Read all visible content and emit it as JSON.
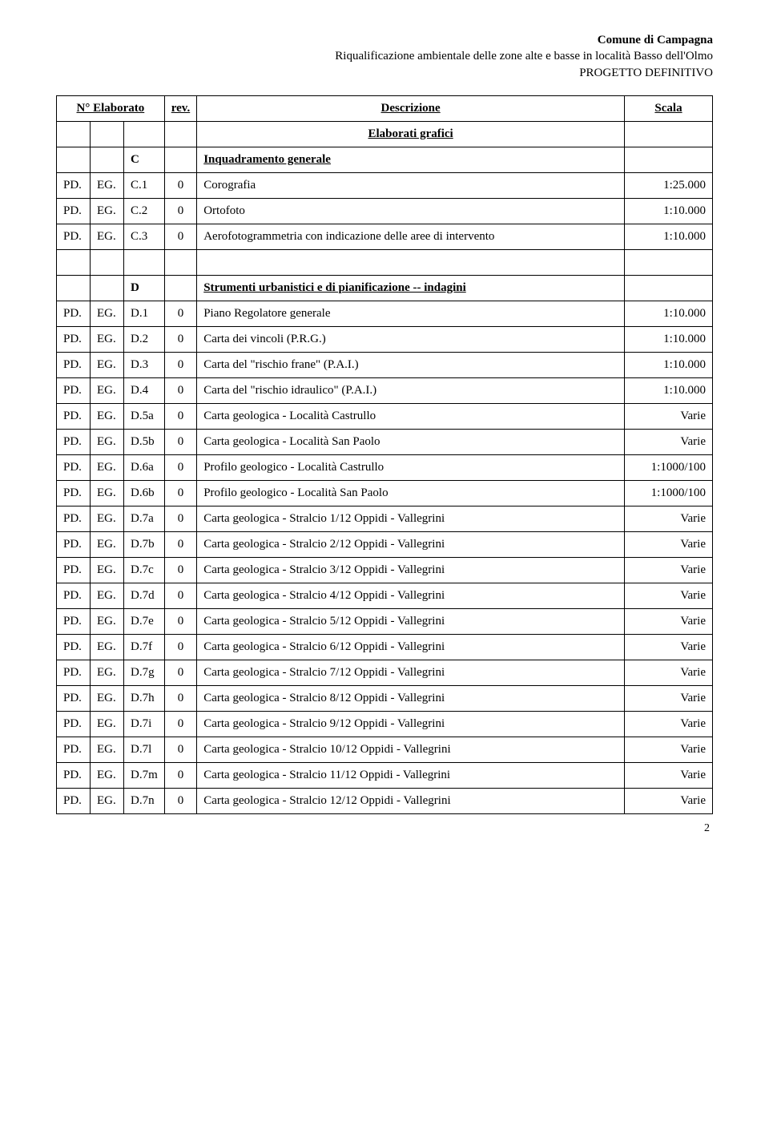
{
  "header": {
    "line1": "Comune di Campagna",
    "line2": "Riqualificazione ambientale delle zone alte e basse in località Basso dell'Olmo",
    "line3": "PROGETTO DEFINITIVO"
  },
  "thead": {
    "n_elaborato": "N° Elaborato",
    "rev": "rev.",
    "descrizione": "Descrizione",
    "scala": "Scala"
  },
  "sections": [
    {
      "title": "Elaborati grafici"
    },
    {
      "letter": "C",
      "name": "Inquadramento generale"
    }
  ],
  "rowsC": [
    {
      "a": "PD.",
      "b": "EG.",
      "c": "C.1",
      "d": "0",
      "e": "Corografia",
      "f": "1:25.000"
    },
    {
      "a": "PD.",
      "b": "EG.",
      "c": "C.2",
      "d": "0",
      "e": "Ortofoto",
      "f": "1:10.000"
    },
    {
      "a": "PD.",
      "b": "EG.",
      "c": "C.3",
      "d": "0",
      "e": "Aerofotogrammetria con indicazione delle aree di intervento",
      "f": "1:10.000"
    }
  ],
  "sectionD": {
    "letter": "D",
    "name": "Strumenti urbanistici e di pianificazione -- indagini"
  },
  "rowsD": [
    {
      "a": "PD.",
      "b": "EG.",
      "c": "D.1",
      "d": "0",
      "e": "Piano Regolatore generale",
      "f": "1:10.000"
    },
    {
      "a": "PD.",
      "b": "EG.",
      "c": "D.2",
      "d": "0",
      "e": "Carta dei vincoli (P.R.G.)",
      "f": "1:10.000"
    },
    {
      "a": "PD.",
      "b": "EG.",
      "c": "D.3",
      "d": "0",
      "e": "Carta del \"rischio frane\" (P.A.I.)",
      "f": "1:10.000"
    },
    {
      "a": "PD.",
      "b": "EG.",
      "c": "D.4",
      "d": "0",
      "e": "Carta del \"rischio idraulico\" (P.A.I.)",
      "f": "1:10.000"
    },
    {
      "a": "PD.",
      "b": "EG.",
      "c": "D.5a",
      "d": "0",
      "e": "Carta geologica - Località Castrullo",
      "f": "Varie"
    },
    {
      "a": "PD.",
      "b": "EG.",
      "c": "D.5b",
      "d": "0",
      "e": "Carta geologica - Località San Paolo",
      "f": "Varie"
    },
    {
      "a": "PD.",
      "b": "EG.",
      "c": "D.6a",
      "d": "0",
      "e": "Profilo geologico - Località Castrullo",
      "f": "1:1000/100"
    },
    {
      "a": "PD.",
      "b": "EG.",
      "c": "D.6b",
      "d": "0",
      "e": "Profilo geologico - Località San Paolo",
      "f": "1:1000/100"
    },
    {
      "a": "PD.",
      "b": "EG.",
      "c": "D.7a",
      "d": "0",
      "e": "Carta geologica - Stralcio 1/12  Oppidi - Vallegrini",
      "f": "Varie"
    },
    {
      "a": "PD.",
      "b": "EG.",
      "c": "D.7b",
      "d": "0",
      "e": "Carta geologica - Stralcio 2/12  Oppidi - Vallegrini",
      "f": "Varie"
    },
    {
      "a": "PD.",
      "b": "EG.",
      "c": "D.7c",
      "d": "0",
      "e": "Carta geologica - Stralcio 3/12  Oppidi - Vallegrini",
      "f": "Varie"
    },
    {
      "a": "PD.",
      "b": "EG.",
      "c": "D.7d",
      "d": "0",
      "e": "Carta geologica - Stralcio 4/12  Oppidi - Vallegrini",
      "f": "Varie"
    },
    {
      "a": "PD.",
      "b": "EG.",
      "c": "D.7e",
      "d": "0",
      "e": "Carta geologica - Stralcio 5/12  Oppidi - Vallegrini",
      "f": "Varie"
    },
    {
      "a": "PD.",
      "b": "EG.",
      "c": "D.7f",
      "d": "0",
      "e": "Carta geologica - Stralcio 6/12  Oppidi - Vallegrini",
      "f": "Varie"
    },
    {
      "a": "PD.",
      "b": "EG.",
      "c": "D.7g",
      "d": "0",
      "e": "Carta geologica - Stralcio 7/12  Oppidi - Vallegrini",
      "f": "Varie"
    },
    {
      "a": "PD.",
      "b": "EG.",
      "c": "D.7h",
      "d": "0",
      "e": "Carta geologica - Stralcio 8/12  Oppidi - Vallegrini",
      "f": "Varie"
    },
    {
      "a": "PD.",
      "b": "EG.",
      "c": "D.7i",
      "d": "0",
      "e": "Carta geologica - Stralcio 9/12  Oppidi - Vallegrini",
      "f": "Varie"
    },
    {
      "a": "PD.",
      "b": "EG.",
      "c": "D.7l",
      "d": "0",
      "e": "Carta geologica - Stralcio 10/12  Oppidi - Vallegrini",
      "f": "Varie"
    },
    {
      "a": "PD.",
      "b": "EG.",
      "c": "D.7m",
      "d": "0",
      "e": "Carta geologica - Stralcio 11/12  Oppidi - Vallegrini",
      "f": "Varie"
    },
    {
      "a": "PD.",
      "b": "EG.",
      "c": "D.7n",
      "d": "0",
      "e": "Carta geologica - Stralcio 12/12  Oppidi - Vallegrini",
      "f": "Varie"
    }
  ],
  "page_number": "2"
}
